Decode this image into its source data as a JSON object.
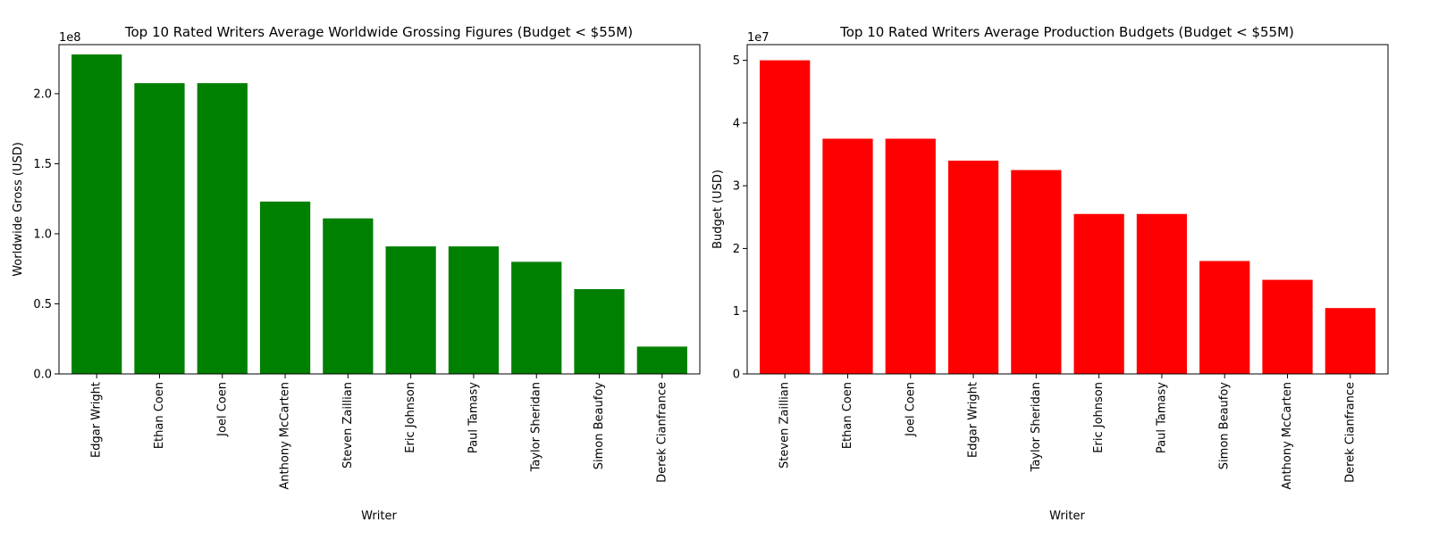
{
  "chart_data": [
    {
      "type": "bar",
      "title": "Top 10 Rated Writers Average Worldwide Grossing Figures (Budget < $55M)",
      "xlabel": "Writer",
      "ylabel": "Worldwide Gross (USD)",
      "offset_text": "1e8",
      "ylim": [
        0,
        235000000
      ],
      "yticks": [
        0,
        50000000,
        100000000,
        150000000,
        200000000
      ],
      "ytick_labels": [
        "0.0",
        "0.5",
        "1.0",
        "1.5",
        "2.0"
      ],
      "color": "#008000",
      "categories": [
        "Edgar Wright",
        "Ethan Coen",
        "Joel Coen",
        "Anthony McCarten",
        "Steven Zaillian",
        "Eric Johnson",
        "Paul Tamasy",
        "Taylor Sheridan",
        "Simon Beaufoy",
        "Derek Cianfrance"
      ],
      "values": [
        228000000,
        207500000,
        207500000,
        123000000,
        111000000,
        91000000,
        91000000,
        80000000,
        60500000,
        19500000
      ]
    },
    {
      "type": "bar",
      "title": "Top 10 Rated Writers Average Production Budgets (Budget < $55M)",
      "xlabel": "Writer",
      "ylabel": "Budget (USD)",
      "offset_text": "1e7",
      "ylim": [
        0,
        52500000
      ],
      "yticks": [
        0,
        10000000,
        20000000,
        30000000,
        40000000,
        50000000
      ],
      "ytick_labels": [
        "0",
        "1",
        "2",
        "3",
        "4",
        "5"
      ],
      "color": "#ff0000",
      "categories": [
        "Steven Zaillian",
        "Ethan Coen",
        "Joel Coen",
        "Edgar Wright",
        "Taylor Sheridan",
        "Eric Johnson",
        "Paul Tamasy",
        "Simon Beaufoy",
        "Anthony McCarten",
        "Derek Cianfrance"
      ],
      "values": [
        50000000,
        37500000,
        37500000,
        34000000,
        32500000,
        25500000,
        25500000,
        18000000,
        15000000,
        10500000
      ]
    }
  ]
}
